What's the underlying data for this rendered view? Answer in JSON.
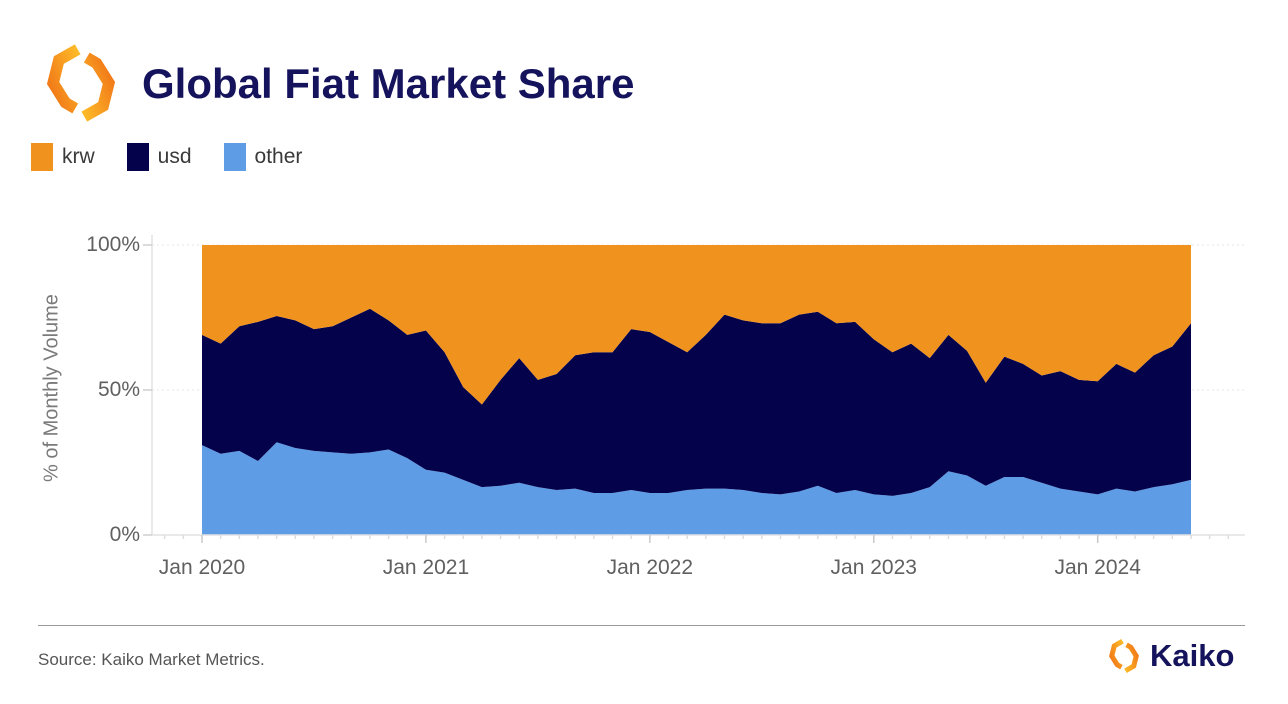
{
  "header": {
    "title": "Global Fiat Market Share"
  },
  "legend": [
    {
      "label": "krw",
      "color": "#F0921E"
    },
    {
      "label": "usd",
      "color": "#04024B"
    },
    {
      "label": "other",
      "color": "#5E9CE6"
    }
  ],
  "footer": {
    "source": "Source: Kaiko Market Metrics.",
    "brand": "Kaiko"
  },
  "chart_data": {
    "type": "area",
    "stacked": true,
    "title": "Global Fiat Market Share",
    "xlabel": "",
    "ylabel": "% of Monthly Volume",
    "ylim": [
      0,
      100
    ],
    "y_tick_labels": [
      "100%",
      "50%",
      "0%"
    ],
    "x_tick_labels": [
      "Jan 2020",
      "Jan 2021",
      "Jan 2022",
      "Jan 2023",
      "Jan 2024"
    ],
    "legend_position": "top",
    "grid": "dotted horizontal at 50% and 100%",
    "months": [
      "2020-01",
      "2020-02",
      "2020-03",
      "2020-04",
      "2020-05",
      "2020-06",
      "2020-07",
      "2020-08",
      "2020-09",
      "2020-10",
      "2020-11",
      "2020-12",
      "2021-01",
      "2021-02",
      "2021-03",
      "2021-04",
      "2021-05",
      "2021-06",
      "2021-07",
      "2021-08",
      "2021-09",
      "2021-10",
      "2021-11",
      "2021-12",
      "2022-01",
      "2022-02",
      "2022-03",
      "2022-04",
      "2022-05",
      "2022-06",
      "2022-07",
      "2022-08",
      "2022-09",
      "2022-10",
      "2022-11",
      "2022-12",
      "2023-01",
      "2023-02",
      "2023-03",
      "2023-04",
      "2023-05",
      "2023-06",
      "2023-07",
      "2023-08",
      "2023-09",
      "2023-10",
      "2023-11",
      "2023-12",
      "2024-01",
      "2024-02",
      "2024-03",
      "2024-04",
      "2024-05",
      "2024-06"
    ],
    "series": [
      {
        "name": "other",
        "color": "#5E9CE6",
        "values": [
          31,
          28,
          29,
          25.5,
          32,
          30,
          29,
          28.5,
          28,
          28.5,
          29.5,
          26.5,
          22.5,
          21.5,
          19,
          16.5,
          17,
          18,
          16.5,
          15.5,
          16,
          14.5,
          14.5,
          15.5,
          14.5,
          14.5,
          15.5,
          16,
          16,
          15.5,
          14.5,
          14,
          15,
          17,
          14.5,
          15.5,
          14,
          13.5,
          14.5,
          16.5,
          22,
          20.5,
          17,
          20,
          20,
          18,
          16,
          15,
          14,
          16,
          15,
          16.5,
          17.5,
          19
        ]
      },
      {
        "name": "usd",
        "color": "#04024B",
        "values": [
          38,
          38,
          43,
          48,
          43.5,
          44,
          42,
          43.5,
          47,
          49.5,
          44.5,
          42.5,
          48,
          41.5,
          32,
          28.5,
          36.5,
          43,
          37,
          40,
          46,
          48.5,
          48.5,
          55.5,
          55.5,
          52,
          47.5,
          53,
          60,
          58.5,
          58.5,
          59,
          61,
          60,
          58.5,
          58,
          53.5,
          49.5,
          51.5,
          44.5,
          47,
          43,
          35.5,
          41.5,
          39,
          37,
          40.5,
          38.5,
          39,
          43,
          41,
          45.5,
          47.5,
          54
        ]
      },
      {
        "name": "krw",
        "color": "#F0921E",
        "values": [
          31,
          34,
          28,
          26.5,
          24.5,
          26,
          29,
          28,
          25,
          22,
          26,
          31,
          29.5,
          37,
          49,
          55,
          46.5,
          39,
          46.5,
          44.5,
          38,
          37,
          37,
          29,
          30,
          33.5,
          37,
          31,
          24,
          26,
          27,
          27,
          24,
          23,
          27,
          26.5,
          32.5,
          37,
          34,
          39,
          31,
          36.5,
          47.5,
          38.5,
          41,
          45,
          43.5,
          46.5,
          47,
          41,
          44,
          38,
          35,
          27
        ]
      }
    ]
  }
}
